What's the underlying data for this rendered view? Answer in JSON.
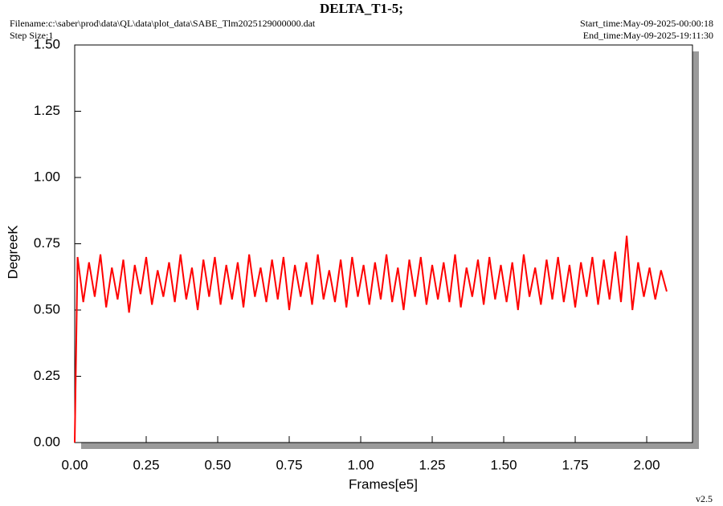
{
  "chart_data": {
    "type": "line",
    "title": "DELTA_T1-5;",
    "filename": "Filename:c:\\saber\\prod\\data\\QL\\data\\plot_data\\SABE_Tlm2025129000000.dat",
    "step_size": "Step Size:1",
    "start_time": "Start_time:May-09-2025-00:00:18",
    "end_time": "End_time:May-09-2025-19:11:30",
    "x_label": "Frames[e5]",
    "y_label": "DegreeK",
    "version": "v2.5",
    "xlim": [
      0,
      2.16
    ],
    "ylim": [
      0,
      1.5
    ],
    "xticks": [
      {
        "value": 0,
        "label": "0.00"
      },
      {
        "value": 0.25,
        "label": "0.25"
      },
      {
        "value": 0.5,
        "label": "0.50"
      },
      {
        "value": 0.75,
        "label": "0.75"
      },
      {
        "value": 1,
        "label": "1.00"
      },
      {
        "value": 1.25,
        "label": "1.25"
      },
      {
        "value": 1.5,
        "label": "1.50"
      },
      {
        "value": 1.75,
        "label": "1.75"
      },
      {
        "value": 2,
        "label": "2.00"
      }
    ],
    "yticks": [
      {
        "value": 0,
        "label": "0.00"
      },
      {
        "value": 0.25,
        "label": "0.25"
      },
      {
        "value": 0.5,
        "label": "0.50"
      },
      {
        "value": 0.75,
        "label": "0.75"
      },
      {
        "value": 1,
        "label": "1.00"
      },
      {
        "value": 1.25,
        "label": "1.25"
      },
      {
        "value": 1.5,
        "label": "1.50"
      }
    ],
    "x": [
      0,
      0.01,
      0.03,
      0.05,
      0.07,
      0.09,
      0.11,
      0.13,
      0.15,
      0.17,
      0.19,
      0.21,
      0.23,
      0.25,
      0.27,
      0.29,
      0.31,
      0.33,
      0.35,
      0.37,
      0.39,
      0.41,
      0.43,
      0.45,
      0.47,
      0.49,
      0.51,
      0.53,
      0.55,
      0.57,
      0.59,
      0.61,
      0.63,
      0.65,
      0.67,
      0.69,
      0.71,
      0.73,
      0.75,
      0.77,
      0.79,
      0.81,
      0.83,
      0.85,
      0.87,
      0.89,
      0.91,
      0.93,
      0.95,
      0.97,
      0.99,
      1.01,
      1.03,
      1.05,
      1.07,
      1.09,
      1.11,
      1.13,
      1.15,
      1.17,
      1.19,
      1.21,
      1.23,
      1.25,
      1.27,
      1.29,
      1.31,
      1.33,
      1.35,
      1.37,
      1.39,
      1.41,
      1.43,
      1.45,
      1.47,
      1.49,
      1.51,
      1.53,
      1.55,
      1.57,
      1.59,
      1.61,
      1.63,
      1.65,
      1.67,
      1.69,
      1.71,
      1.73,
      1.75,
      1.77,
      1.79,
      1.81,
      1.83,
      1.85,
      1.87,
      1.89,
      1.91,
      1.93,
      1.95,
      1.97,
      1.99,
      2.01,
      2.03,
      2.05,
      2.07
    ],
    "series": [
      {
        "color": "#ff0000",
        "values": [
          0,
          0.7,
          0.53,
          0.68,
          0.55,
          0.71,
          0.51,
          0.66,
          0.54,
          0.69,
          0.49,
          0.67,
          0.56,
          0.7,
          0.52,
          0.65,
          0.55,
          0.68,
          0.53,
          0.71,
          0.54,
          0.66,
          0.5,
          0.69,
          0.55,
          0.7,
          0.52,
          0.67,
          0.54,
          0.68,
          0.51,
          0.71,
          0.55,
          0.66,
          0.53,
          0.69,
          0.54,
          0.7,
          0.5,
          0.67,
          0.55,
          0.68,
          0.52,
          0.71,
          0.54,
          0.65,
          0.53,
          0.69,
          0.51,
          0.7,
          0.55,
          0.67,
          0.52,
          0.68,
          0.54,
          0.71,
          0.53,
          0.66,
          0.5,
          0.69,
          0.55,
          0.7,
          0.52,
          0.67,
          0.54,
          0.68,
          0.53,
          0.71,
          0.51,
          0.66,
          0.55,
          0.69,
          0.52,
          0.7,
          0.54,
          0.67,
          0.53,
          0.68,
          0.5,
          0.71,
          0.55,
          0.66,
          0.52,
          0.69,
          0.54,
          0.7,
          0.53,
          0.67,
          0.51,
          0.68,
          0.55,
          0.7,
          0.52,
          0.69,
          0.54,
          0.72,
          0.53,
          0.78,
          0.5,
          0.68,
          0.55,
          0.66,
          0.54,
          0.65,
          0.57
        ]
      }
    ]
  }
}
